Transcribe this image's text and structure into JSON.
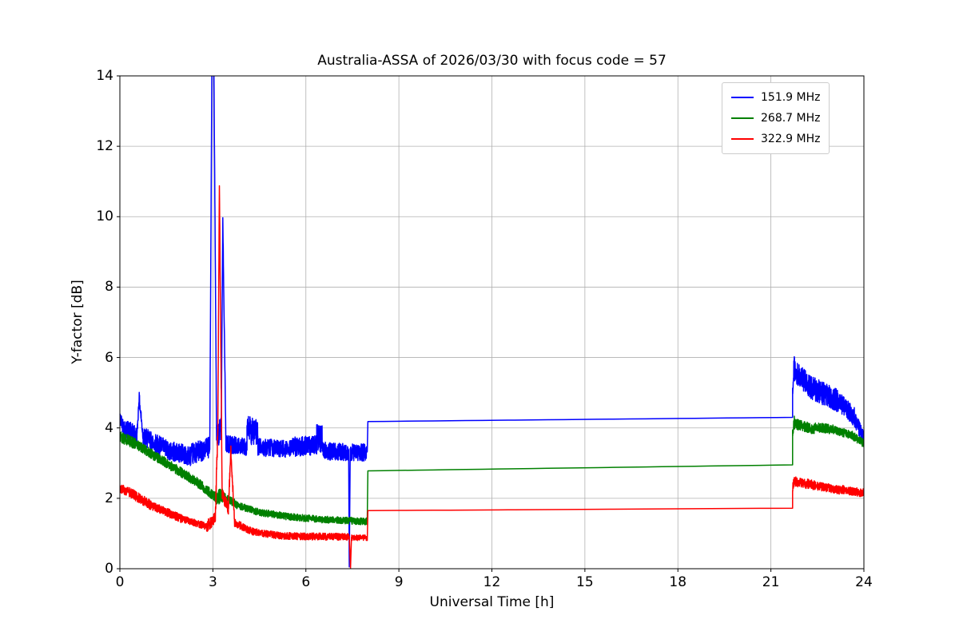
{
  "chart_data": {
    "type": "line",
    "title": "Australia-ASSA of 2026/03/30 with focus code = 57",
    "xlabel": "Universal Time [h]",
    "ylabel": "Y-factor [dB]",
    "xlim": [
      0,
      24
    ],
    "ylim": [
      0,
      14
    ],
    "xticks": [
      0,
      3,
      6,
      9,
      12,
      15,
      18,
      21,
      24
    ],
    "yticks": [
      0,
      2,
      4,
      6,
      8,
      10,
      12,
      14
    ],
    "grid": true,
    "grid_color": "#b0b0b0",
    "legend_position": "upper-right",
    "noise_seed": 42,
    "series": [
      {
        "name": "151.9 MHz",
        "color": "#0000ff",
        "segments": [
          [
            0.0,
            0.15,
            4.25,
            4.0,
            0.22
          ],
          [
            0.15,
            0.55,
            4.0,
            3.75,
            0.28
          ],
          [
            0.55,
            0.62,
            3.75,
            4.85,
            0.15
          ],
          [
            0.62,
            0.75,
            4.85,
            3.75,
            0.2
          ],
          [
            0.75,
            1.6,
            3.75,
            3.35,
            0.28
          ],
          [
            1.6,
            2.3,
            3.35,
            3.2,
            0.28
          ],
          [
            2.3,
            2.9,
            3.25,
            3.45,
            0.3
          ],
          [
            2.9,
            2.97,
            3.5,
            14.6,
            0.1
          ],
          [
            2.97,
            3.03,
            14.6,
            14.6,
            0.1
          ],
          [
            3.03,
            3.12,
            14.6,
            3.7,
            0.15
          ],
          [
            3.12,
            3.27,
            3.7,
            4.0,
            0.35
          ],
          [
            3.27,
            3.32,
            4.0,
            9.9,
            0.15
          ],
          [
            3.32,
            3.42,
            9.9,
            3.6,
            0.15
          ],
          [
            3.42,
            4.1,
            3.55,
            3.45,
            0.25
          ],
          [
            4.1,
            4.45,
            3.95,
            3.85,
            0.4
          ],
          [
            4.45,
            5.4,
            3.45,
            3.4,
            0.25
          ],
          [
            5.4,
            6.35,
            3.45,
            3.5,
            0.28
          ],
          [
            6.35,
            6.55,
            3.75,
            3.65,
            0.4
          ],
          [
            6.55,
            7.38,
            3.35,
            3.3,
            0.25
          ],
          [
            7.38,
            7.4,
            3.3,
            0.05,
            0.03
          ],
          [
            7.4,
            7.43,
            0.05,
            3.3,
            0.03
          ],
          [
            7.43,
            7.98,
            3.3,
            3.3,
            0.25
          ],
          [
            8.0,
            21.7,
            4.18,
            4.3,
            0.01
          ],
          [
            21.7,
            21.76,
            5.1,
            6.0,
            0.25
          ],
          [
            21.76,
            22.3,
            5.6,
            5.15,
            0.33
          ],
          [
            22.3,
            23.2,
            5.15,
            4.75,
            0.33
          ],
          [
            23.2,
            23.7,
            4.75,
            4.3,
            0.28
          ],
          [
            23.7,
            24.0,
            4.25,
            3.7,
            0.22
          ]
        ]
      },
      {
        "name": "268.7 MHz",
        "color": "#008000",
        "segments": [
          [
            0.0,
            0.5,
            3.75,
            3.55,
            0.16
          ],
          [
            0.5,
            1.5,
            3.55,
            3.0,
            0.14
          ],
          [
            1.5,
            2.5,
            3.0,
            2.45,
            0.14
          ],
          [
            2.5,
            3.1,
            2.45,
            2.02,
            0.14
          ],
          [
            3.1,
            3.35,
            2.02,
            2.1,
            0.22
          ],
          [
            3.35,
            3.8,
            2.05,
            1.8,
            0.12
          ],
          [
            3.8,
            4.5,
            1.8,
            1.6,
            0.1
          ],
          [
            4.5,
            5.5,
            1.6,
            1.47,
            0.1
          ],
          [
            5.5,
            6.5,
            1.47,
            1.4,
            0.1
          ],
          [
            6.5,
            7.98,
            1.4,
            1.34,
            0.1
          ],
          [
            8.0,
            21.7,
            2.78,
            2.95,
            0.008
          ],
          [
            21.7,
            21.76,
            3.9,
            4.22,
            0.18
          ],
          [
            21.76,
            22.4,
            4.12,
            3.96,
            0.15
          ],
          [
            22.4,
            23.0,
            4.02,
            3.95,
            0.14
          ],
          [
            23.0,
            23.6,
            3.95,
            3.8,
            0.12
          ],
          [
            23.6,
            24.0,
            3.8,
            3.55,
            0.12
          ]
        ]
      },
      {
        "name": "322.9 MHz",
        "color": "#ff0000",
        "segments": [
          [
            0.0,
            0.3,
            2.28,
            2.18,
            0.13
          ],
          [
            0.3,
            1.0,
            2.18,
            1.8,
            0.14
          ],
          [
            1.0,
            2.0,
            1.8,
            1.42,
            0.12
          ],
          [
            2.0,
            2.8,
            1.42,
            1.2,
            0.1
          ],
          [
            2.8,
            3.08,
            1.2,
            1.45,
            0.18
          ],
          [
            3.08,
            3.16,
            1.45,
            4.0,
            0.25
          ],
          [
            3.16,
            3.21,
            4.0,
            10.95,
            0.15
          ],
          [
            3.21,
            3.3,
            10.95,
            2.1,
            0.25
          ],
          [
            3.3,
            3.5,
            2.1,
            1.7,
            0.18
          ],
          [
            3.5,
            3.58,
            1.7,
            3.4,
            0.2
          ],
          [
            3.58,
            3.7,
            3.4,
            1.3,
            0.15
          ],
          [
            3.7,
            4.3,
            1.3,
            1.05,
            0.11
          ],
          [
            4.3,
            5.2,
            1.05,
            0.93,
            0.1
          ],
          [
            5.2,
            7.4,
            0.93,
            0.9,
            0.1
          ],
          [
            7.4,
            7.44,
            0.9,
            0.02,
            0.02
          ],
          [
            7.44,
            7.47,
            0.02,
            0.88,
            0.02
          ],
          [
            7.47,
            7.98,
            0.88,
            0.88,
            0.08
          ],
          [
            8.0,
            21.7,
            1.65,
            1.72,
            0.008
          ],
          [
            21.7,
            21.76,
            2.3,
            2.55,
            0.14
          ],
          [
            21.76,
            22.5,
            2.48,
            2.35,
            0.14
          ],
          [
            22.5,
            23.3,
            2.35,
            2.22,
            0.12
          ],
          [
            23.3,
            24.0,
            2.25,
            2.15,
            0.12
          ]
        ]
      }
    ]
  }
}
